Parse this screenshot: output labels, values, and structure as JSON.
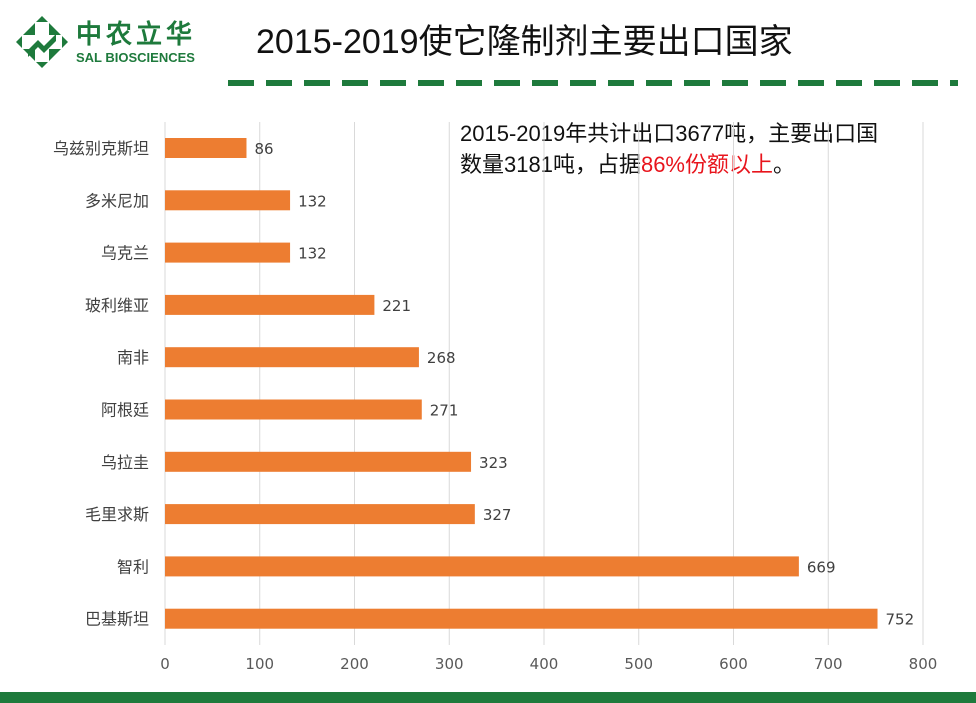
{
  "logo": {
    "cn": "中农立华",
    "en": "SAL BIOSCIENCES"
  },
  "title": "2015-2019使它隆制剂主要出口国家",
  "note": {
    "line1": "2015-2019年共计出口3677吨，主要出口国",
    "line2_prefix": "数量3181吨，占据",
    "line2_highlight": "86%份额以上",
    "line2_suffix": "。"
  },
  "colors": {
    "brand_green": "#1e7a3c",
    "bar": "#ed7d31",
    "highlight": "#e8141c",
    "grid": "#d9d9d9"
  },
  "chart_data": {
    "type": "bar",
    "orientation": "horizontal",
    "categories": [
      "乌兹别克斯坦",
      "多米尼加",
      "乌克兰",
      "玻利维亚",
      "南非",
      "阿根廷",
      "乌拉圭",
      "毛里求斯",
      "智利",
      "巴基斯坦"
    ],
    "values": [
      86,
      132,
      132,
      221,
      268,
      271,
      323,
      327,
      669,
      752
    ],
    "xlim": [
      0,
      800
    ],
    "xticks": [
      0,
      100,
      200,
      300,
      400,
      500,
      600,
      700,
      800
    ],
    "grid": true,
    "data_labels": true,
    "xlabel": "",
    "ylabel": ""
  }
}
